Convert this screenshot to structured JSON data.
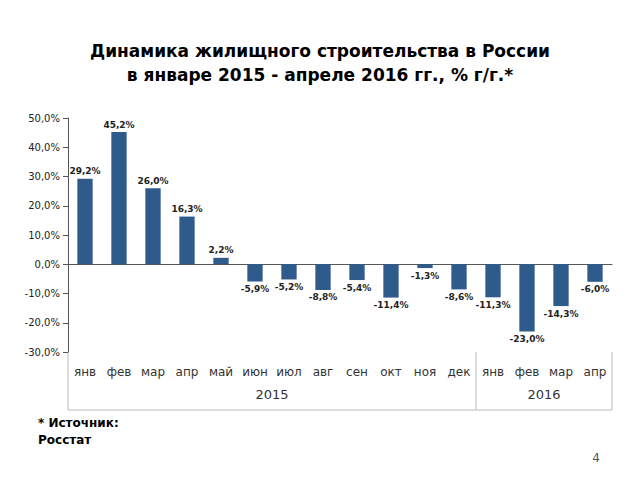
{
  "chart_data": {
    "type": "bar",
    "title": "Динамика жилищного строительства в России\nв январе 2015 - апреле 2016 гг., % г/г.*",
    "categories": [
      "янв",
      "фев",
      "мар",
      "апр",
      "май",
      "июн",
      "июл",
      "авг",
      "сен",
      "окт",
      "ноя",
      "дек",
      "янв",
      "фев",
      "мар",
      "апр"
    ],
    "values": [
      29.2,
      45.2,
      26.0,
      16.3,
      2.2,
      -5.9,
      -5.2,
      -8.8,
      -5.4,
      -11.4,
      -1.3,
      -8.6,
      -11.3,
      -23.0,
      -14.3,
      -6.0
    ],
    "value_labels": [
      "29,2%",
      "45,2%",
      "26,0%",
      "16,3%",
      "2,2%",
      "-5,9%",
      "-5,2%",
      "-8,8%",
      "-5,4%",
      "-11,4%",
      "-1,3%",
      "-8,6%",
      "-11,3%",
      "-23,0%",
      "-14,3%",
      "-6,0%"
    ],
    "groups": [
      {
        "label": "2015",
        "count": 12
      },
      {
        "label": "2016",
        "count": 4
      }
    ],
    "color": "#2e5a8c",
    "ylim": [
      -30,
      50
    ],
    "yticks": [
      {
        "value": -30,
        "label": "-30,0%"
      },
      {
        "value": -20,
        "label": "-20,0%"
      },
      {
        "value": -10,
        "label": "-10,0%"
      },
      {
        "value": 0,
        "label": "0,0%"
      },
      {
        "value": 10,
        "label": "10,0%"
      },
      {
        "value": 20,
        "label": "20,0%"
      },
      {
        "value": 30,
        "label": "30,0%"
      },
      {
        "value": 40,
        "label": "40,0%"
      },
      {
        "value": 50,
        "label": "50,0%"
      }
    ],
    "grid": false,
    "data_labels": true,
    "footnote": "* Источник:\nРосстат",
    "page_number": "4"
  }
}
